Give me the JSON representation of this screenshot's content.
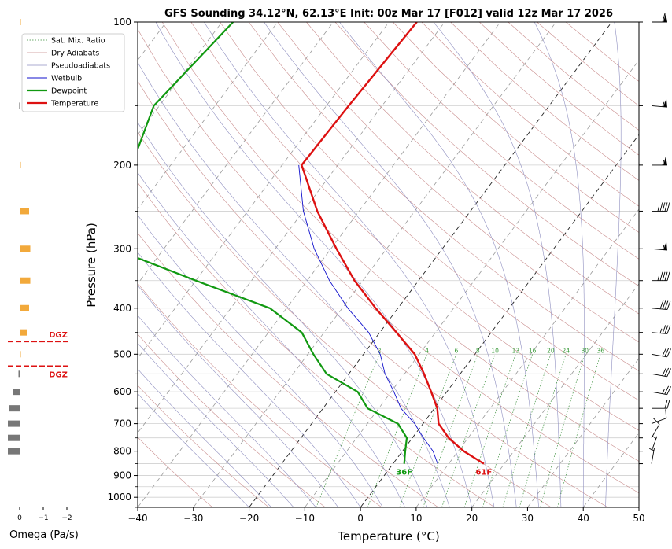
{
  "chart_data": {
    "type": "skewt",
    "title": "GFS Sounding 34.12°N, 62.13°E Init: 00z Mar 17 [F012] valid 12z Mar 17 2026",
    "xlabel": "Temperature (°C)",
    "ylabel": "Pressure (hPa)",
    "xlim": [
      -40,
      50
    ],
    "ylim": [
      1050,
      100
    ],
    "x_ticks": [
      -40,
      -30,
      -20,
      -10,
      0,
      10,
      20,
      30,
      40,
      50
    ],
    "y_ticks": [
      100,
      200,
      300,
      400,
      500,
      600,
      700,
      800,
      900,
      1000
    ],
    "y_tick_labels": [
      "100",
      "200",
      "300",
      "400",
      "500",
      "600",
      "700",
      "800",
      "900",
      "1000"
    ],
    "x_tick_labels": [
      "−40",
      "−30",
      "−20",
      "−10",
      "0",
      "10",
      "20",
      "30",
      "40",
      "50"
    ],
    "temperature": {
      "name": "Temperature",
      "color": "#dd1111",
      "pressure": [
        850,
        800,
        750,
        700,
        650,
        600,
        550,
        500,
        450,
        400,
        350,
        300,
        250,
        200,
        150,
        100
      ],
      "values": [
        16.3,
        11.0,
        6.5,
        2.8,
        0.5,
        -2.8,
        -6.5,
        -10.8,
        -17.0,
        -24.0,
        -31.5,
        -39.0,
        -47.5,
        -56.5,
        -56.0,
        -55.0
      ]
    },
    "dewpoint": {
      "name": "Dewpoint",
      "color": "#119911",
      "pressure": [
        850,
        800,
        750,
        700,
        650,
        600,
        550,
        500,
        450,
        400,
        350,
        300,
        250,
        200,
        150,
        100
      ],
      "values": [
        2.0,
        0.5,
        -1.0,
        -4.5,
        -12.0,
        -16.0,
        -24.0,
        -29.0,
        -34.0,
        -43.0,
        -60.0,
        -79.0,
        -83.0,
        -87.0,
        -91.0,
        -88.0
      ]
    },
    "wetbulb": {
      "name": "Wetbulb",
      "color": "#1111cc",
      "pressure": [
        850,
        800,
        750,
        700,
        650,
        600,
        550,
        500,
        450,
        400,
        350,
        300,
        250,
        200
      ],
      "values": [
        8.0,
        5.5,
        2.0,
        -1.5,
        -6.0,
        -9.5,
        -13.5,
        -17.0,
        -22.0,
        -29.0,
        -36.0,
        -43.0,
        -50.0,
        -57.0
      ]
    },
    "mixing_ratio_labels": [
      "2",
      "4",
      "6",
      "8",
      "10",
      "13",
      "16",
      "20",
      "24",
      "30",
      "36"
    ],
    "mixing_ratio_values": [
      2,
      4,
      6,
      8,
      10,
      13,
      16,
      20,
      24,
      30,
      36
    ],
    "mixing_ratio_label_pressure": 500,
    "surface_labels": {
      "temperature": "61F",
      "dewpoint": "36F"
    },
    "legend": {
      "position": "top-left",
      "entries": [
        "Sat. Mix. Ratio",
        "Dry Adiabats",
        "Pseudoadiabats",
        "Wetbulb",
        "Dewpoint",
        "Temperature"
      ]
    },
    "omega": {
      "xlabel": "Omega (Pa/s)",
      "x_tick_labels": [
        "0",
        "−1",
        "−2"
      ],
      "x_ticks": [
        0,
        -1,
        -2
      ],
      "pressure": [
        100,
        150,
        200,
        250,
        300,
        350,
        400,
        450,
        500,
        550,
        600,
        650,
        700,
        750,
        800
      ],
      "values": [
        -0.05,
        0.02,
        -0.03,
        -0.4,
        -0.45,
        -0.45,
        -0.4,
        -0.3,
        -0.05,
        0.05,
        0.3,
        0.45,
        0.5,
        0.5,
        0.5
      ],
      "dgz_label": "DGZ",
      "dgz_top": 470,
      "dgz_bottom": 530,
      "dgz_color": "#dd1111"
    },
    "wind_barbs": [
      {
        "pressure": 100,
        "speed_kt": 60,
        "direction": 270
      },
      {
        "pressure": 150,
        "speed_kt": 55,
        "direction": 275
      },
      {
        "pressure": 200,
        "speed_kt": 55,
        "direction": 270
      },
      {
        "pressure": 250,
        "speed_kt": 45,
        "direction": 270
      },
      {
        "pressure": 300,
        "speed_kt": 55,
        "direction": 275
      },
      {
        "pressure": 350,
        "speed_kt": 45,
        "direction": 270
      },
      {
        "pressure": 400,
        "speed_kt": 40,
        "direction": 275
      },
      {
        "pressure": 450,
        "speed_kt": 35,
        "direction": 275
      },
      {
        "pressure": 500,
        "speed_kt": 30,
        "direction": 280
      },
      {
        "pressure": 550,
        "speed_kt": 30,
        "direction": 280
      },
      {
        "pressure": 600,
        "speed_kt": 25,
        "direction": 280
      },
      {
        "pressure": 650,
        "speed_kt": 20,
        "direction": 270
      },
      {
        "pressure": 700,
        "speed_kt": 10,
        "direction": 250
      },
      {
        "pressure": 750,
        "speed_kt": 10,
        "direction": 210
      },
      {
        "pressure": 800,
        "speed_kt": 5,
        "direction": 200
      },
      {
        "pressure": 850,
        "speed_kt": 5,
        "direction": 190
      }
    ]
  }
}
